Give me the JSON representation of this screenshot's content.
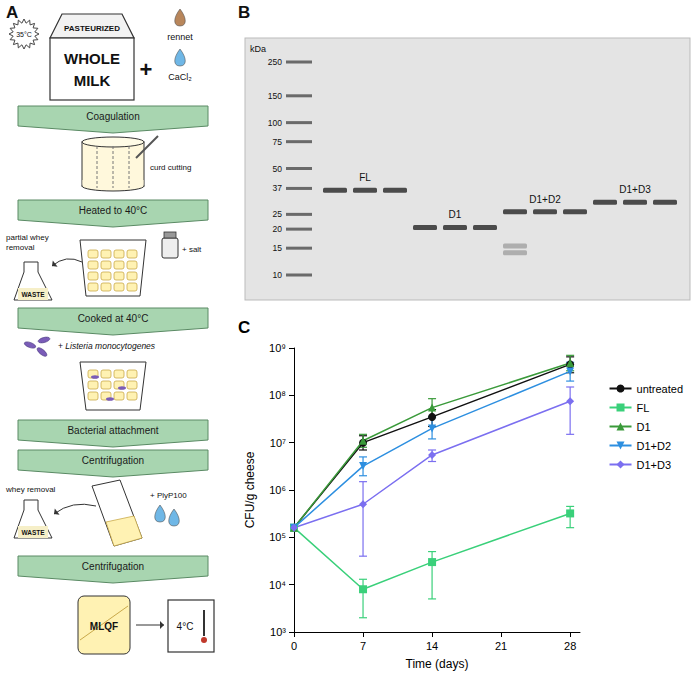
{
  "panel_labels": [
    "A",
    "B",
    "C"
  ],
  "diagram": {
    "temperature": "35°C",
    "carton": [
      "PASTEURIZED",
      "WHOLE",
      "MILK"
    ],
    "plus": "+",
    "additives": [
      "rennet",
      "CaCl₂"
    ],
    "steps": [
      "Coagulation",
      "Heated to 40°C",
      "Cooked at 40°C",
      "Bacterial attachment",
      "Centrifugation",
      "Centrifugation"
    ],
    "notes": {
      "cutting": "curd cutting",
      "whey1": "partial whey removal",
      "salt": "+ salt",
      "bacteria": "+ Listeria monocytogenes",
      "whey2": "whey removal",
      "phage": "+ PlyP100"
    },
    "waste": "WASTE",
    "product": "MLQF",
    "storage": "4°C"
  },
  "gel": {
    "unit": "kDa",
    "ladder": [
      250,
      150,
      100,
      75,
      50,
      37,
      25,
      20,
      15,
      10
    ],
    "groups": [
      {
        "name": "FL",
        "lanes": [
          [
            36
          ],
          [
            36
          ],
          [
            36
          ]
        ]
      },
      {
        "name": "D1",
        "lanes": [
          [
            20.5
          ],
          [
            20.5
          ],
          [
            20.5
          ]
        ]
      },
      {
        "name": "D1+D2",
        "lanes": [
          [
            26,
            15.5,
            14
          ],
          [
            26
          ],
          [
            26
          ]
        ]
      },
      {
        "name": "D1+D3",
        "lanes": [
          [
            30
          ],
          [
            30
          ],
          [
            30
          ]
        ]
      }
    ]
  },
  "chart_data": {
    "type": "line",
    "x_label": "Time (days)",
    "y_label": "CFU/g cheese",
    "x": [
      0,
      7,
      14,
      28
    ],
    "xlim": [
      0,
      29
    ],
    "xticks": [
      0,
      7,
      14,
      21,
      28
    ],
    "ylim": [
      1000,
      1000000000
    ],
    "yticks": [
      {
        "value": 1000,
        "label": "10³"
      },
      {
        "value": 10000,
        "label": "10⁴"
      },
      {
        "value": 100000,
        "label": "10⁵"
      },
      {
        "value": 1000000,
        "label": "10⁶"
      },
      {
        "value": 10000000,
        "label": "10⁷"
      },
      {
        "value": 100000000,
        "label": "10⁸"
      },
      {
        "value": 1000000000,
        "label": "10⁹"
      }
    ],
    "log": "y",
    "grid": false,
    "legend": "right",
    "series": [
      {
        "name": "untreated",
        "color": "#111111",
        "marker": "circle",
        "values": [
          160000,
          10000000,
          35000000,
          450000000
        ],
        "error_bars": [
          null,
          [
            7000000,
            14000000
          ],
          [
            22000000,
            50000000
          ],
          [
            300000000,
            650000000
          ]
        ]
      },
      {
        "name": "FL",
        "color": "#3ad07a",
        "marker": "square",
        "values": [
          160000,
          8000,
          30000,
          320000
        ],
        "error_bars": [
          null,
          [
            2000,
            13000
          ],
          [
            5000,
            50000
          ],
          [
            160000,
            450000
          ]
        ]
      },
      {
        "name": "D1",
        "color": "#3a9a3a",
        "marker": "triangle",
        "values": [
          160000,
          11000000,
          55000000,
          480000000
        ],
        "error_bars": [
          null,
          [
            8000000,
            15000000
          ],
          [
            35000000,
            85000000
          ],
          [
            330000000,
            700000000
          ]
        ]
      },
      {
        "name": "D1+D2",
        "color": "#2d8fe0",
        "marker": "triangle-down",
        "values": [
          160000,
          3200000,
          20000000,
          320000000
        ],
        "error_bars": [
          null,
          [
            2000000,
            5000000
          ],
          [
            12000000,
            35000000
          ],
          [
            200000000,
            500000000
          ]
        ]
      },
      {
        "name": "D1+D3",
        "color": "#7b6ff0",
        "marker": "diamond",
        "values": [
          160000,
          500000,
          5500000,
          75000000
        ],
        "error_bars": [
          null,
          [
            40000,
            1500000
          ],
          [
            4000000,
            7000000
          ],
          [
            15000000,
            150000000
          ]
        ]
      }
    ]
  }
}
